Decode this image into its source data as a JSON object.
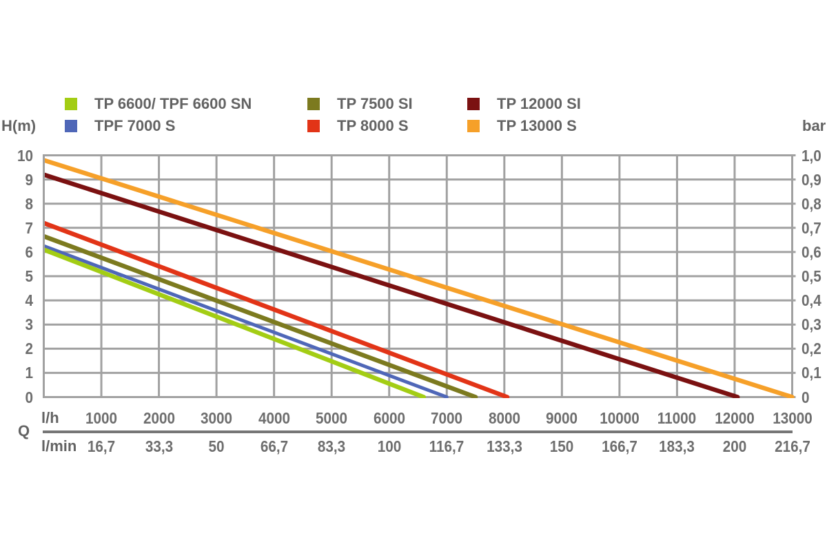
{
  "labels": {
    "y_left_unit": "H(m)",
    "y_right_unit": "bar",
    "flow_symbol": "Q",
    "x_primary_unit": "l/h",
    "x_secondary_unit": "l/min"
  },
  "y_axis": {
    "left_ticks": [
      "10",
      "9",
      "8",
      "7",
      "6",
      "5",
      "4",
      "3",
      "2",
      "1",
      "0"
    ],
    "right_ticks": [
      "1,0",
      "0,9",
      "0,8",
      "0,7",
      "0,6",
      "0,5",
      "0,4",
      "0,3",
      "0,2",
      "0,1",
      "0"
    ]
  },
  "x_axis": {
    "primary_ticks": [
      "1000",
      "2000",
      "3000",
      "4000",
      "5000",
      "6000",
      "7000",
      "8000",
      "9000",
      "10000",
      "11000",
      "12000",
      "13000"
    ],
    "secondary_ticks": [
      "16,7",
      "33,3",
      "50",
      "66,7",
      "83,3",
      "100",
      "116,7",
      "133,3",
      "150",
      "166,7",
      "183,3",
      "200",
      "216,7"
    ]
  },
  "chart_data": {
    "type": "line",
    "title": "",
    "xlabel": "Q",
    "x_units": [
      "l/h",
      "l/min"
    ],
    "ylabel_left": "H(m)",
    "ylabel_right": "bar",
    "xlim": [
      0,
      13000
    ],
    "ylim_left_m": [
      0,
      10
    ],
    "ylim_right_bar": [
      0,
      1.0
    ],
    "x_gridline_step_lh": 1000,
    "y_gridline_step_m": 1,
    "grid": "on",
    "grid_color": "#a1a1a1",
    "legend_position": "top",
    "series": [
      {
        "name": "TP 6600/ TPF 6600 SN",
        "color": "#a3cd14",
        "line_width": 6.5,
        "points": [
          [
            0,
            6.1
          ],
          [
            6600,
            0
          ]
        ]
      },
      {
        "name": "TPF 7000 S",
        "color": "#4f67b8",
        "line_width": 5,
        "points": [
          [
            0,
            6.25
          ],
          [
            7000,
            0
          ]
        ]
      },
      {
        "name": "TP 7500 SI",
        "color": "#7c7a1f",
        "line_width": 6.5,
        "points": [
          [
            0,
            6.65
          ],
          [
            7500,
            0
          ]
        ]
      },
      {
        "name": "TP 8000 S",
        "color": "#e23417",
        "line_width": 6.5,
        "points": [
          [
            0,
            7.2
          ],
          [
            8050,
            0
          ]
        ]
      },
      {
        "name": "TP 12000 SI",
        "color": "#7b1111",
        "line_width": 6.5,
        "points": [
          [
            0,
            9.2
          ],
          [
            12050,
            0
          ]
        ]
      },
      {
        "name": "TP 13000 S",
        "color": "#f6a029",
        "line_width": 6.5,
        "points": [
          [
            0,
            9.8
          ],
          [
            13000,
            0
          ]
        ]
      }
    ]
  }
}
